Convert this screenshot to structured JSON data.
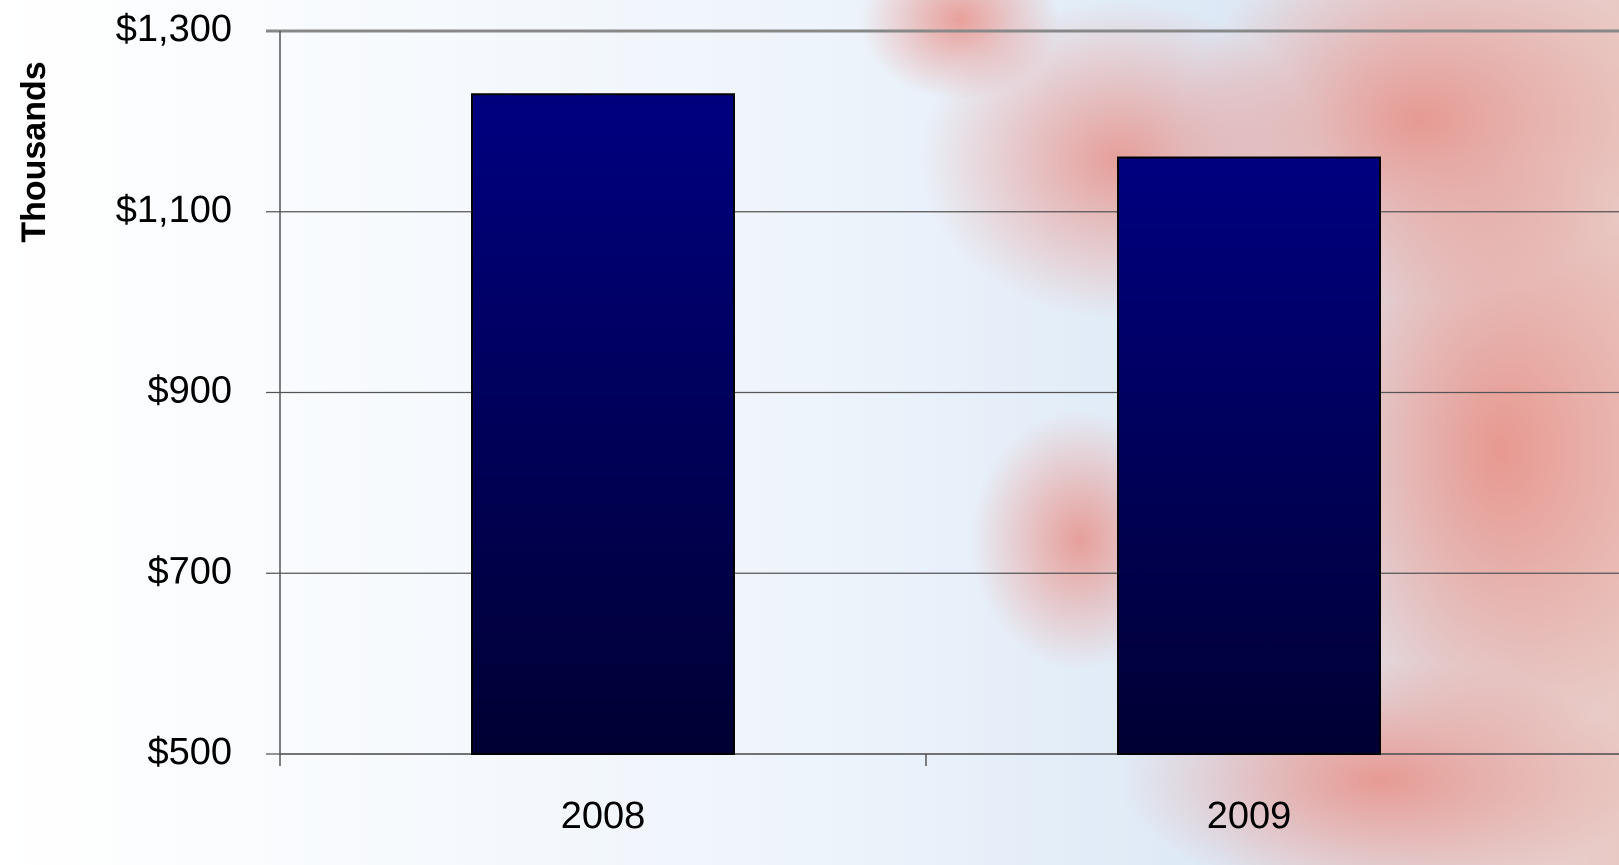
{
  "chart_data": {
    "type": "bar",
    "y_label": "Thousands",
    "categories": [
      "2008",
      "2009"
    ],
    "values": [
      1230,
      1160
    ],
    "color": "#000080",
    "ylim": [
      500,
      1300
    ],
    "yticks": [
      {
        "value": 500,
        "label": "$500"
      },
      {
        "value": 700,
        "label": "$700"
      },
      {
        "value": 900,
        "label": "$900"
      },
      {
        "value": 1100,
        "label": "$1,100"
      },
      {
        "value": 1300,
        "label": "$1,300"
      }
    ],
    "grid": true
  }
}
